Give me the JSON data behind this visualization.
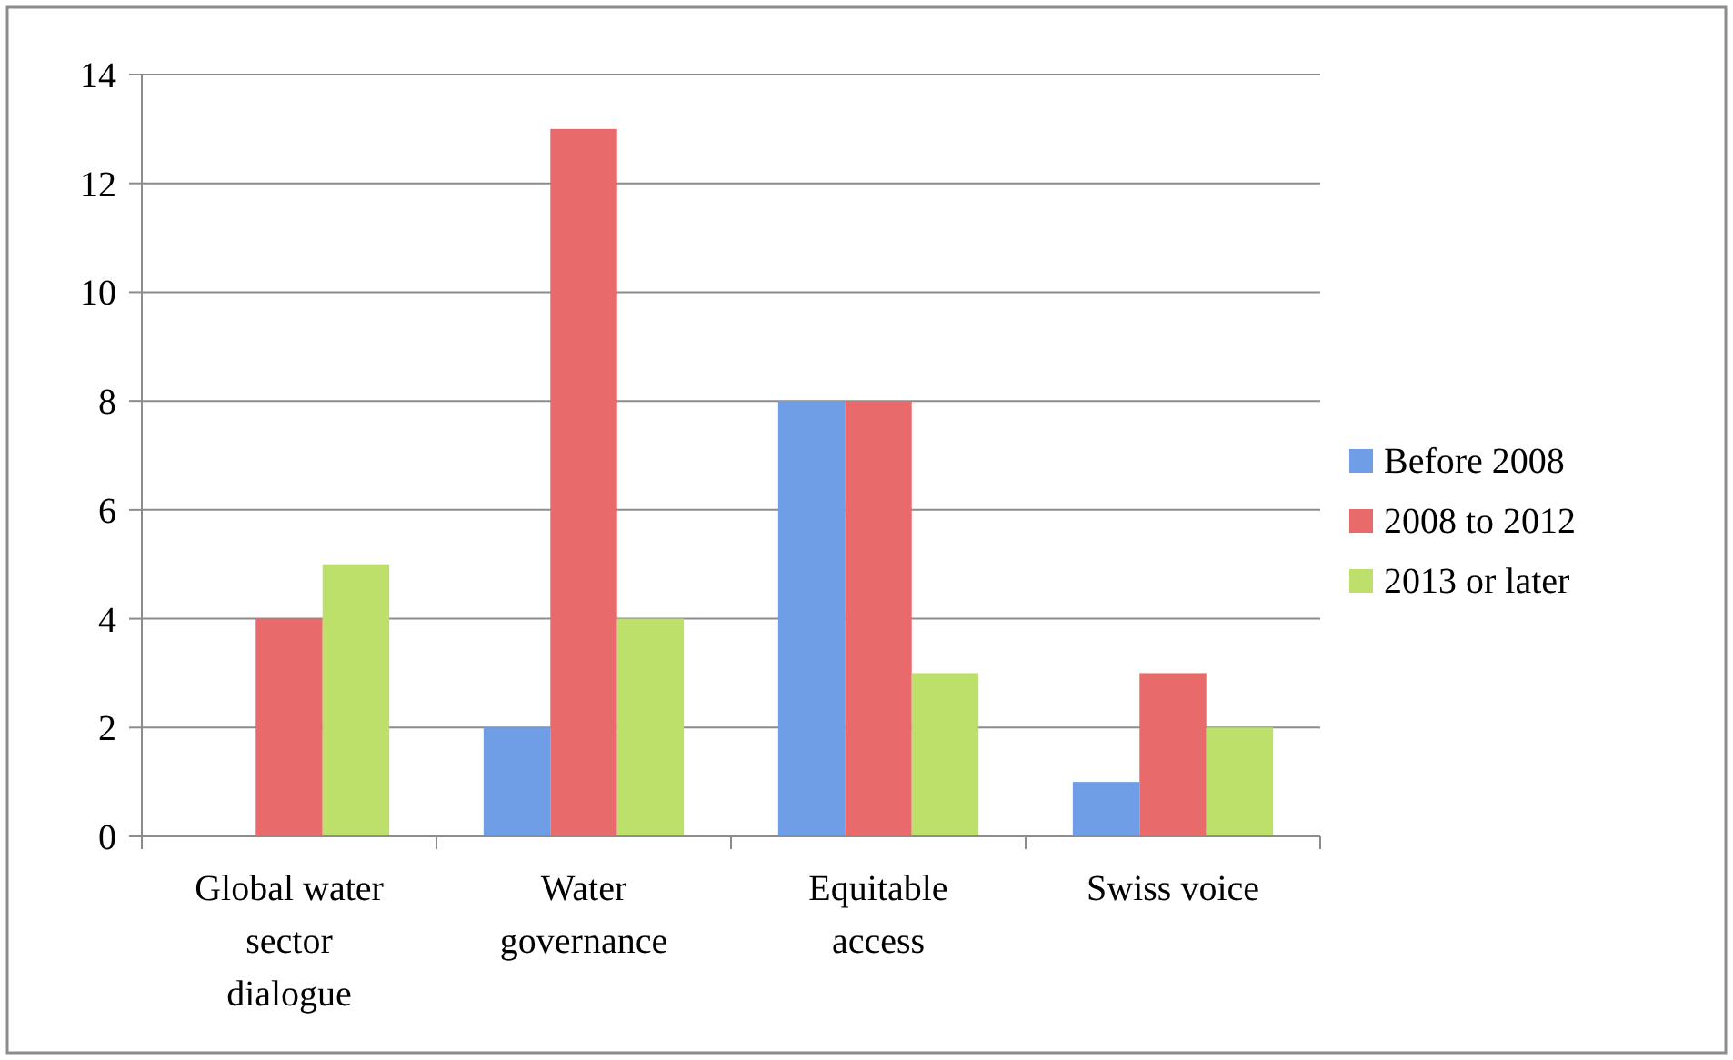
{
  "chart_data": {
    "type": "bar",
    "categories": [
      "Global water sector dialogue",
      "Water governance",
      "Equitable access",
      "Swiss voice"
    ],
    "series": [
      {
        "name": "Before 2008",
        "color": "#6f9ee6",
        "values": [
          0,
          2,
          8,
          1
        ]
      },
      {
        "name": "2008 to 2012",
        "color": "#e86a6a",
        "values": [
          4,
          13,
          8,
          3
        ]
      },
      {
        "name": "2013 or later",
        "color": "#bde06a",
        "values": [
          5,
          4,
          3,
          2
        ]
      }
    ],
    "ylim": [
      0,
      14
    ],
    "yticks": [
      0,
      2,
      4,
      6,
      8,
      10,
      12,
      14
    ],
    "grid": "y",
    "legend": "right"
  }
}
